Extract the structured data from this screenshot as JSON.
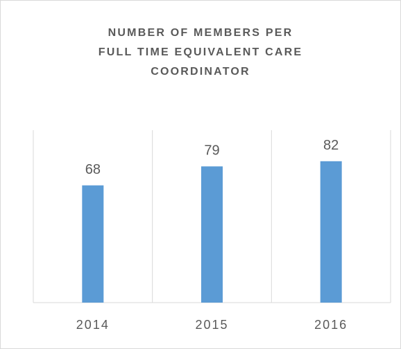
{
  "chart_data": {
    "type": "bar",
    "title": "NUMBER OF MEMBERS PER\nFULL TIME EQUIVALENT CARE\nCOORDINATOR",
    "categories": [
      "2014",
      "2015",
      "2016"
    ],
    "values": [
      68,
      79,
      82
    ],
    "color": "#5b9bd5",
    "ylim": [
      0,
      100
    ]
  }
}
